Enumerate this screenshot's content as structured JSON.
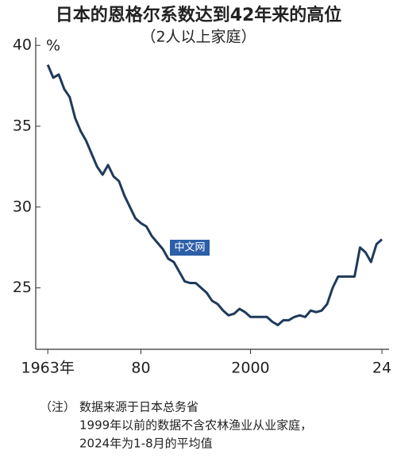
{
  "chart_data": {
    "type": "line",
    "title": "日本的恩格尔系数达到42年来的高位",
    "subtitle": "（2人以上家庭）",
    "y_unit": "%",
    "watermark": "中文网",
    "note_label": "（注）",
    "notes": [
      "数据来源于日本总务省",
      "1999年以前的数据不含农林渔业从业家庭，",
      "2024年为1-8月的平均值"
    ],
    "x": [
      1963,
      1964,
      1965,
      1966,
      1967,
      1968,
      1969,
      1970,
      1971,
      1972,
      1973,
      1974,
      1975,
      1976,
      1977,
      1978,
      1979,
      1980,
      1981,
      1982,
      1983,
      1984,
      1985,
      1986,
      1987,
      1988,
      1989,
      1990,
      1991,
      1992,
      1993,
      1994,
      1995,
      1996,
      1997,
      1998,
      1999,
      2000,
      2001,
      2002,
      2003,
      2004,
      2005,
      2006,
      2007,
      2008,
      2009,
      2010,
      2011,
      2012,
      2013,
      2014,
      2015,
      2016,
      2017,
      2018,
      2019,
      2020,
      2021,
      2022,
      2023,
      2024
    ],
    "values": [
      38.8,
      38.0,
      38.2,
      37.3,
      36.8,
      35.5,
      34.7,
      34.1,
      33.3,
      32.5,
      32.0,
      32.6,
      31.9,
      31.6,
      30.7,
      30.0,
      29.3,
      29.0,
      28.8,
      28.2,
      27.8,
      27.4,
      26.8,
      26.6,
      26.0,
      25.4,
      25.3,
      25.3,
      25.0,
      24.7,
      24.2,
      24.0,
      23.6,
      23.3,
      23.4,
      23.7,
      23.5,
      23.2,
      23.2,
      23.2,
      23.2,
      22.9,
      22.7,
      23.0,
      23.0,
      23.2,
      23.3,
      23.2,
      23.6,
      23.5,
      23.6,
      24.0,
      25.0,
      25.7,
      25.7,
      25.7,
      25.7,
      27.5,
      27.2,
      26.6,
      27.7,
      28.0
    ],
    "color": "#1f3a5a",
    "xlim": [
      1960.8,
      2025.3
    ],
    "xticks": [
      {
        "value": 1963,
        "label": "1963年"
      },
      {
        "value": 1980,
        "label": "80"
      },
      2000,
      {
        "value": 2024,
        "label": "24"
      }
    ],
    "ylim": [
      21.2,
      40.5
    ],
    "yticks": [
      25,
      30,
      35,
      40
    ],
    "grid": false
  }
}
